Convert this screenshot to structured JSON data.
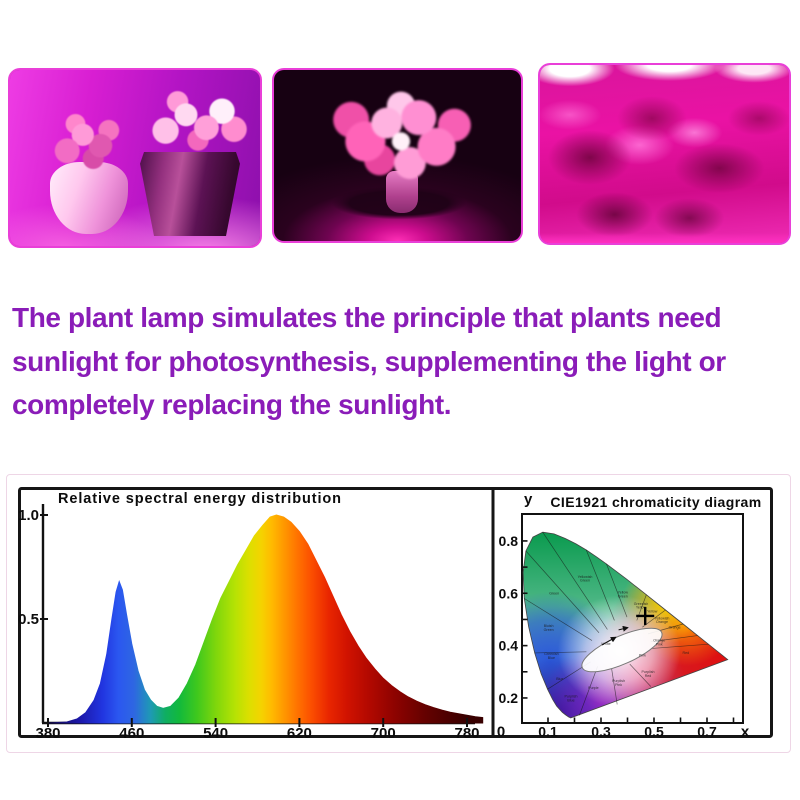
{
  "headline": {
    "color": "#8A1CB8",
    "lines": [
      "The plant lamp simulates the principle that plants need",
      "sunlight for photosynthesis, supplementing the light or",
      "completely replacing the sunlight."
    ]
  },
  "chart_data": [
    {
      "type": "area",
      "title": "Relative spectral energy distribution",
      "xlim": [
        380,
        795
      ],
      "ylim": [
        0,
        1.05
      ],
      "grid": false,
      "x_ticks": [
        380,
        460,
        540,
        620,
        700,
        780
      ],
      "y_ticks": [
        {
          "label": "1.0",
          "value": 1.0
        },
        {
          "label": "0.5",
          "value": 0.5
        }
      ],
      "peaks": [
        {
          "x": 448,
          "y": 0.68
        },
        {
          "x": 595,
          "y": 1.0
        }
      ],
      "series": [
        {
          "name": "relative spectral energy",
          "x": [
            380,
            398,
            408,
            416,
            424,
            430,
            436,
            441,
            445,
            448,
            451,
            455,
            460,
            466,
            472,
            478,
            484,
            490,
            497,
            505,
            513,
            521,
            529,
            537,
            545,
            553,
            561,
            569,
            577,
            585,
            592,
            598,
            605,
            612,
            620,
            628,
            636,
            644,
            652,
            660,
            668,
            676,
            684,
            692,
            700,
            708,
            716,
            724,
            732,
            740,
            748,
            756,
            764,
            772,
            780,
            788,
            795
          ],
          "y": [
            0,
            0.005,
            0.02,
            0.05,
            0.11,
            0.19,
            0.33,
            0.5,
            0.63,
            0.68,
            0.64,
            0.52,
            0.38,
            0.25,
            0.16,
            0.11,
            0.08,
            0.07,
            0.08,
            0.12,
            0.19,
            0.28,
            0.39,
            0.5,
            0.6,
            0.68,
            0.76,
            0.83,
            0.9,
            0.95,
            0.99,
            1.0,
            0.99,
            0.965,
            0.92,
            0.86,
            0.78,
            0.7,
            0.61,
            0.52,
            0.44,
            0.37,
            0.31,
            0.26,
            0.215,
            0.18,
            0.15,
            0.125,
            0.105,
            0.088,
            0.074,
            0.062,
            0.052,
            0.044,
            0.037,
            0.03,
            0.026
          ]
        }
      ]
    },
    {
      "type": "heatmap",
      "title": "CIE1921 chromaticity diagram",
      "axis_labels": {
        "x_axis": "x",
        "y_axis": "y",
        "origin": "0"
      },
      "xlim": [
        0,
        0.84
      ],
      "ylim": [
        0,
        0.9
      ],
      "x_ticks": [
        0.1,
        0.3,
        0.5,
        0.7
      ],
      "y_ticks": [
        0.2,
        0.4,
        0.6,
        0.8
      ],
      "minor_tick_step": 0.1,
      "marker": {
        "x": 0.44,
        "y": 0.46
      },
      "white_ellipse": {
        "cx": 0.357,
        "cy": 0.308,
        "rx": 0.155,
        "ry": 0.062,
        "rotate": -24
      },
      "locus_arrows": [
        [
          0.285,
          0.33,
          0.335,
          0.365
        ],
        [
          0.345,
          0.398,
          0.378,
          0.408
        ]
      ],
      "locus": [
        [
          0.1741,
          0.005
        ],
        [
          0.1669,
          0.0091
        ],
        [
          0.1566,
          0.0177
        ],
        [
          0.144,
          0.0297
        ],
        [
          0.1241,
          0.0578
        ],
        [
          0.1096,
          0.0868
        ],
        [
          0.0913,
          0.1327
        ],
        [
          0.0687,
          0.2007
        ],
        [
          0.0454,
          0.295
        ],
        [
          0.0235,
          0.4127
        ],
        [
          0.0082,
          0.5384
        ],
        [
          0.0039,
          0.6548
        ],
        [
          0.0139,
          0.7502
        ],
        [
          0.0389,
          0.812
        ],
        [
          0.0743,
          0.8338
        ],
        [
          0.1142,
          0.8262
        ],
        [
          0.1547,
          0.8059
        ],
        [
          0.1929,
          0.7816
        ],
        [
          0.2296,
          0.7543
        ],
        [
          0.2658,
          0.7243
        ],
        [
          0.3016,
          0.6923
        ],
        [
          0.3731,
          0.6245
        ],
        [
          0.4441,
          0.5547
        ],
        [
          0.5125,
          0.4866
        ],
        [
          0.5752,
          0.4242
        ],
        [
          0.627,
          0.3725
        ],
        [
          0.6658,
          0.334
        ],
        [
          0.6915,
          0.3083
        ],
        [
          0.7079,
          0.292
        ],
        [
          0.7347,
          0.2653
        ]
      ],
      "boundaries": [
        [
          [
            0.305,
            0.4
          ],
          [
            0.074,
            0.834
          ]
        ],
        [
          [
            0.275,
            0.385
          ],
          [
            0.0139,
            0.75
          ]
        ],
        [
          [
            0.25,
            0.35
          ],
          [
            0.0082,
            0.538
          ]
        ],
        [
          [
            0.23,
            0.3
          ],
          [
            0.0454,
            0.295
          ]
        ],
        [
          [
            0.245,
            0.255
          ],
          [
            0.0913,
            0.133
          ]
        ],
        [
          [
            0.27,
            0.235
          ],
          [
            0.205,
            0.016
          ]
        ],
        [
          [
            0.32,
            0.225
          ],
          [
            0.34,
            0.065
          ]
        ],
        [
          [
            0.385,
            0.245
          ],
          [
            0.46,
            0.145
          ]
        ],
        [
          [
            0.465,
            0.315
          ],
          [
            0.6658,
            0.334
          ]
        ],
        [
          [
            0.46,
            0.345
          ],
          [
            0.627,
            0.3725
          ]
        ],
        [
          [
            0.45,
            0.38
          ],
          [
            0.5752,
            0.4242
          ]
        ],
        [
          [
            0.43,
            0.41
          ],
          [
            0.5125,
            0.4866
          ]
        ],
        [
          [
            0.41,
            0.44
          ],
          [
            0.4441,
            0.5547
          ]
        ],
        [
          [
            0.375,
            0.455
          ],
          [
            0.3016,
            0.6923
          ]
        ],
        [
          [
            0.33,
            0.44
          ],
          [
            0.2296,
            0.7543
          ]
        ]
      ],
      "region_labels": [
        {
          "name": "Yellowish Green",
          "x": 0.225,
          "y": 0.63
        },
        {
          "name": "Green",
          "x": 0.115,
          "y": 0.555
        },
        {
          "name": "Bluish Green",
          "x": 0.095,
          "y": 0.41
        },
        {
          "name": "Greenish Blue",
          "x": 0.105,
          "y": 0.285
        },
        {
          "name": "Blue",
          "x": 0.135,
          "y": 0.175
        },
        {
          "name": "Purplish Blue",
          "x": 0.175,
          "y": 0.095
        },
        {
          "name": "Purple",
          "x": 0.255,
          "y": 0.135
        },
        {
          "name": "Purplish Pink",
          "x": 0.345,
          "y": 0.165
        },
        {
          "name": "Purplish Red",
          "x": 0.45,
          "y": 0.205
        },
        {
          "name": "Pink",
          "x": 0.43,
          "y": 0.28
        },
        {
          "name": "Orange Pink",
          "x": 0.49,
          "y": 0.345
        },
        {
          "name": "Red",
          "x": 0.585,
          "y": 0.29
        },
        {
          "name": "Orange",
          "x": 0.545,
          "y": 0.405
        },
        {
          "name": "Yellowish Orange",
          "x": 0.5,
          "y": 0.445
        },
        {
          "name": "Yellow",
          "x": 0.465,
          "y": 0.475
        },
        {
          "name": "Greenish Yellow",
          "x": 0.425,
          "y": 0.51
        },
        {
          "name": "Yellow Green",
          "x": 0.36,
          "y": 0.56
        },
        {
          "name": "White",
          "x": 0.3,
          "y": 0.33
        }
      ]
    }
  ]
}
